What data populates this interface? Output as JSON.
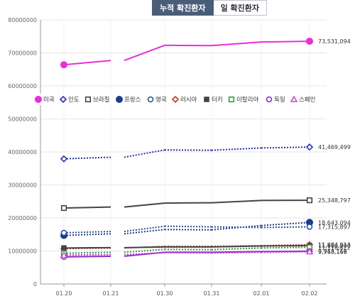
{
  "tabs": [
    {
      "label": "누적 확진환자",
      "active": true
    },
    {
      "label": "일 확진환자",
      "active": false
    }
  ],
  "chart_data": {
    "type": "line",
    "x": [
      "01.20",
      "01.21",
      "01.30",
      "01.31",
      "02.01",
      "02.02"
    ],
    "ylim": [
      0,
      80000000
    ],
    "yticks": [
      "80000000",
      "70000000",
      "60000000",
      "50000000",
      "40000000",
      "30000000",
      "20000000",
      "10000000",
      "0"
    ],
    "grid": true,
    "legend_position": "middle",
    "series": [
      {
        "name": "미국",
        "color": "#ee2bdc",
        "marker": "filled-circle",
        "style": "solid",
        "values": [
          66400000,
          67700000,
          72300000,
          72200000,
          73300000,
          73531094
        ],
        "end_label": "73,531,094"
      },
      {
        "name": "인도",
        "color": "#2430c0",
        "marker": "diamond",
        "style": "dotted",
        "values": [
          37900000,
          38400000,
          40600000,
          40500000,
          41200000,
          41469499
        ],
        "end_label": "41,469,499"
      },
      {
        "name": "브라질",
        "color": "#444444",
        "marker": "square",
        "style": "solid",
        "values": [
          23000000,
          23300000,
          24500000,
          24600000,
          25300000,
          25348797
        ],
        "end_label": "25,348,797"
      },
      {
        "name": "프랑스",
        "color": "#1c3c8c",
        "marker": "filled-circle",
        "style": "dotted",
        "values": [
          14700000,
          15200000,
          16500000,
          16400000,
          17700000,
          18643094
        ],
        "end_label": "18,643,094"
      },
      {
        "name": "영국",
        "color": "#2a4ea8",
        "marker": "circle",
        "style": "dotted",
        "values": [
          15500000,
          15900000,
          17500000,
          17300000,
          17100000,
          17315897
        ],
        "end_label": "17,315,897"
      },
      {
        "name": "러시아",
        "color": "#c0392b",
        "marker": "diamond",
        "style": "dotted",
        "values": [
          10700000,
          10900000,
          11400000,
          11400000,
          11600000,
          11884913
        ],
        "end_label": "11,884,913"
      },
      {
        "name": "터키",
        "color": "#444444",
        "marker": "filled-square",
        "style": "solid",
        "values": [
          10900000,
          11000000,
          11200000,
          11200000,
          11500000,
          11600000
        ],
        "end_label": "11,600,000"
      },
      {
        "name": "이탈리아",
        "color": "#3a9a3a",
        "marker": "square",
        "style": "dotted",
        "values": [
          9300000,
          9600000,
          10500000,
          10400000,
          10900000,
          11116422
        ],
        "end_label": "11,116,422"
      },
      {
        "name": "독일",
        "color": "#8e2bc8",
        "marker": "circle",
        "style": "solid",
        "values": [
          8200000,
          8400000,
          9600000,
          9600000,
          9800000,
          9918116
        ],
        "end_label": "9,918,116"
      },
      {
        "name": "스페인",
        "color": "#c838e0",
        "marker": "triangle",
        "style": "dotted",
        "values": [
          8700000,
          8900000,
          9500000,
          9400000,
          9600000,
          9763168
        ],
        "end_label": "9,763,168"
      }
    ]
  }
}
